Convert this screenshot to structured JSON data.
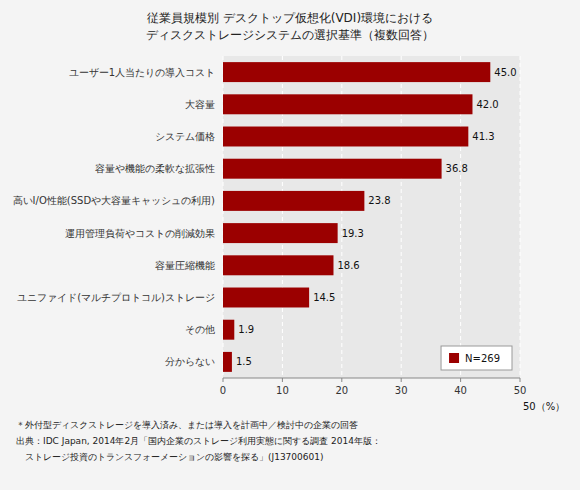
{
  "chart_data": {
    "type": "bar",
    "orientation": "horizontal",
    "title": "従業員規模別 デスクトップ仮想化(VDI)環境における",
    "subtitle": "ディスクストレージシステムの選択基準（複数回答）",
    "categories": [
      "ユーザー1人当たりの導入コスト",
      "大容量",
      "システム価格",
      "容量や機能の柔軟な拡張性",
      "高いI/O性能(SSDや大容量キャッシュの利用)",
      "運用管理負荷やコストの削減効果",
      "容量圧縮機能",
      "ユニファイド(マルチプロトコル)ストレージ",
      "その他",
      "分からない"
    ],
    "series": [
      {
        "name": "N=269",
        "color": "#9B0000",
        "values": [
          45.0,
          42.0,
          41.3,
          36.8,
          23.8,
          19.3,
          18.6,
          14.5,
          1.9,
          1.5
        ],
        "value_labels": [
          "45.0",
          "42.0",
          "41.3",
          "36.8",
          "23.8",
          "19.3",
          "18.6",
          "14.5",
          "1.9",
          "1.5"
        ]
      }
    ],
    "xlim": [
      0,
      50
    ],
    "xticks": [
      0,
      10,
      20,
      30,
      40,
      50
    ],
    "grid": true,
    "data_labels": true,
    "legend": "lower right",
    "annotations": [
      "50（%）"
    ],
    "notes": [
      "＊外付型ディスクストレージを導入済み、または導入を計画中／検討中の企業の回答",
      "出典：IDC Japan, 2014年2月「国内企業のストレージ利用実態に関する調査 2014年版：",
      "　ストレージ投資のトランスフォーメーションの影響を探る」(J13700601)"
    ]
  }
}
